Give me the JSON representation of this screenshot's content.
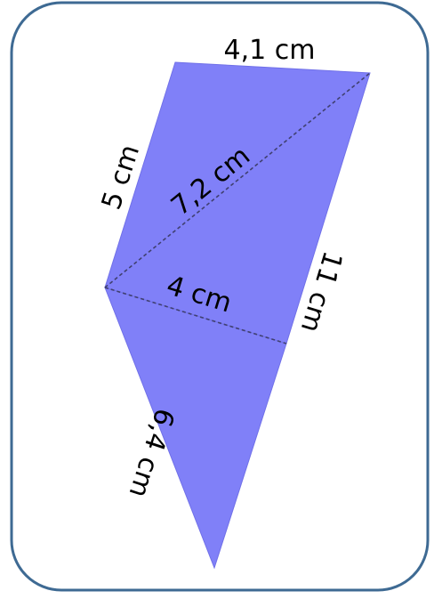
{
  "card": {
    "border_color": "#3E6A93",
    "background": "#FFFFFF"
  },
  "shape": {
    "fill_color": "#8080F8",
    "edge_color": "#3333CC",
    "diagonal_style": "dashed"
  },
  "labels": {
    "top_edge": "4,1 cm",
    "upper_left_edge": "5 cm",
    "long_diagonal": "7,2 cm",
    "middle_diagonal": "4 cm",
    "right_edge": "11 cm",
    "lower_left_edge": "6,4 cm"
  }
}
